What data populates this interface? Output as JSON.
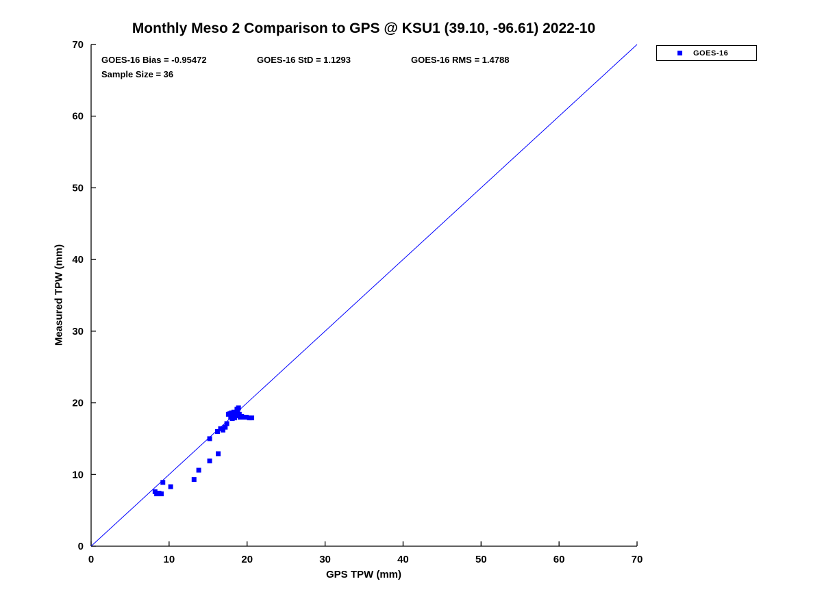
{
  "title": "Monthly Meso 2 Comparison to GPS @ KSU1 (39.10, -96.61) 2022-10",
  "annotations": {
    "bias": "GOES-16 Bias = -0.95472",
    "std": "GOES-16 StD = 1.1293",
    "rms": "GOES-16 RMS = 1.4788",
    "sample_size": "Sample Size = 36"
  },
  "legend": {
    "label": "GOES-16",
    "marker_color": "#0000ff",
    "position": "top-right"
  },
  "chart_data": {
    "type": "scatter",
    "title": "Monthly Meso 2 Comparison to GPS @ KSU1 (39.10, -96.61) 2022-10",
    "xlabel": "GPS TPW (mm)",
    "ylabel": "Measured TPW (mm)",
    "xlim": [
      0,
      70
    ],
    "ylim": [
      0,
      70
    ],
    "xticks": [
      0,
      10,
      20,
      30,
      40,
      50,
      60,
      70
    ],
    "yticks": [
      0,
      10,
      20,
      30,
      40,
      50,
      60,
      70
    ],
    "grid": false,
    "stats": {
      "bias": -0.95472,
      "std": 1.1293,
      "rms": 1.4788,
      "sample_size": 36
    },
    "series": [
      {
        "name": "GOES-16",
        "kind": "scatter",
        "marker": "square",
        "color": "#0000ff",
        "points": [
          [
            8.2,
            7.6
          ],
          [
            8.4,
            7.3
          ],
          [
            8.7,
            7.4
          ],
          [
            9.0,
            7.3
          ],
          [
            9.2,
            8.9
          ],
          [
            10.2,
            8.3
          ],
          [
            13.2,
            9.3
          ],
          [
            13.8,
            10.6
          ],
          [
            15.2,
            11.9
          ],
          [
            16.3,
            12.9
          ],
          [
            15.2,
            15.0
          ],
          [
            16.2,
            16.0
          ],
          [
            16.6,
            16.4
          ],
          [
            16.9,
            16.2
          ],
          [
            17.2,
            16.6
          ],
          [
            17.4,
            17.1
          ],
          [
            17.6,
            18.4
          ],
          [
            17.8,
            18.5
          ],
          [
            17.9,
            18.0
          ],
          [
            18.0,
            18.6
          ],
          [
            18.1,
            17.8
          ],
          [
            18.2,
            18.3
          ],
          [
            18.3,
            18.7
          ],
          [
            18.4,
            17.9
          ],
          [
            18.5,
            18.5
          ],
          [
            18.6,
            18.2
          ],
          [
            18.7,
            19.1
          ],
          [
            18.8,
            18.9
          ],
          [
            18.9,
            19.3
          ],
          [
            19.0,
            18.4
          ],
          [
            19.1,
            18.0
          ],
          [
            19.3,
            18.1
          ],
          [
            19.5,
            18.0
          ],
          [
            19.9,
            18.0
          ],
          [
            20.3,
            17.9
          ],
          [
            20.6,
            17.9
          ]
        ]
      },
      {
        "name": "one-to-one-line",
        "kind": "line",
        "color": "#0000ff",
        "points": [
          [
            0,
            0
          ],
          [
            70,
            70
          ]
        ]
      }
    ]
  }
}
